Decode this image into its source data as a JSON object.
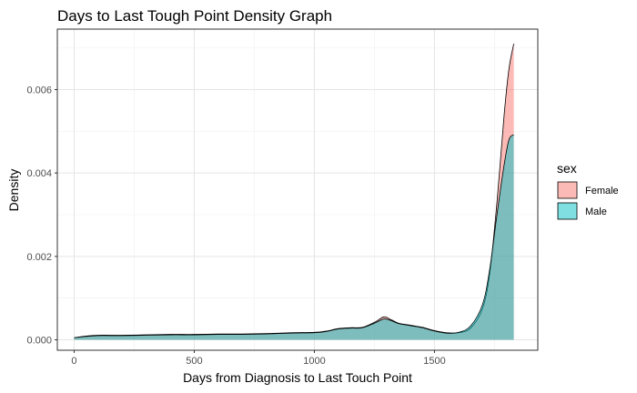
{
  "chart_data": {
    "type": "area",
    "title": "Days to Last Tough Point Density Graph",
    "xlabel": "Days from Diagnosis to Last Touch Point",
    "ylabel": "Density",
    "xlim": [
      -70,
      1930
    ],
    "ylim": [
      -0.00025,
      0.00745
    ],
    "x_ticks": [
      0,
      500,
      1000,
      1500
    ],
    "y_ticks": [
      0.0,
      0.002,
      0.004,
      0.006
    ],
    "x_tick_labels": [
      "0",
      "500",
      "1000",
      "1500"
    ],
    "y_tick_labels": [
      "0.000",
      "0.002",
      "0.004",
      "0.006"
    ],
    "grid": true,
    "legend": {
      "title": "sex",
      "position": "right"
    },
    "series": [
      {
        "name": "Female",
        "color": "#F8766D",
        "opacity": 0.5,
        "points": [
          [
            0,
            5e-05
          ],
          [
            50,
            9e-05
          ],
          [
            100,
            0.00011
          ],
          [
            200,
            0.00011
          ],
          [
            300,
            0.00012
          ],
          [
            400,
            0.00013
          ],
          [
            500,
            0.00013
          ],
          [
            600,
            0.00014
          ],
          [
            700,
            0.00014
          ],
          [
            800,
            0.00015
          ],
          [
            900,
            0.00017
          ],
          [
            1000,
            0.00018
          ],
          [
            1050,
            0.00021
          ],
          [
            1100,
            0.00027
          ],
          [
            1150,
            0.00029
          ],
          [
            1200,
            0.0003
          ],
          [
            1250,
            0.00042
          ],
          [
            1290,
            0.00055
          ],
          [
            1320,
            0.00048
          ],
          [
            1350,
            0.0004
          ],
          [
            1400,
            0.00035
          ],
          [
            1450,
            0.0003
          ],
          [
            1500,
            0.00022
          ],
          [
            1550,
            0.00017
          ],
          [
            1600,
            0.00017
          ],
          [
            1650,
            0.00028
          ],
          [
            1700,
            0.00075
          ],
          [
            1730,
            0.0016
          ],
          [
            1760,
            0.0033
          ],
          [
            1790,
            0.0054
          ],
          [
            1810,
            0.0065
          ],
          [
            1830,
            0.0071
          ]
        ]
      },
      {
        "name": "Male",
        "color": "#00BFC4",
        "opacity": 0.5,
        "points": [
          [
            0,
            5e-05
          ],
          [
            50,
            8e-05
          ],
          [
            100,
            0.0001
          ],
          [
            200,
            0.0001
          ],
          [
            300,
            0.00011
          ],
          [
            400,
            0.00012
          ],
          [
            500,
            0.00012
          ],
          [
            600,
            0.00013
          ],
          [
            700,
            0.00013
          ],
          [
            800,
            0.00014
          ],
          [
            900,
            0.00016
          ],
          [
            1000,
            0.00017
          ],
          [
            1050,
            0.0002
          ],
          [
            1100,
            0.00026
          ],
          [
            1150,
            0.00028
          ],
          [
            1200,
            0.00029
          ],
          [
            1250,
            0.0004
          ],
          [
            1290,
            0.0005
          ],
          [
            1320,
            0.00046
          ],
          [
            1350,
            0.00039
          ],
          [
            1400,
            0.00034
          ],
          [
            1450,
            0.00029
          ],
          [
            1500,
            0.00021
          ],
          [
            1550,
            0.00016
          ],
          [
            1600,
            0.00018
          ],
          [
            1650,
            0.00033
          ],
          [
            1700,
            0.00085
          ],
          [
            1730,
            0.0017
          ],
          [
            1760,
            0.003
          ],
          [
            1790,
            0.0042
          ],
          [
            1810,
            0.0048
          ],
          [
            1830,
            0.00492
          ]
        ]
      }
    ]
  }
}
